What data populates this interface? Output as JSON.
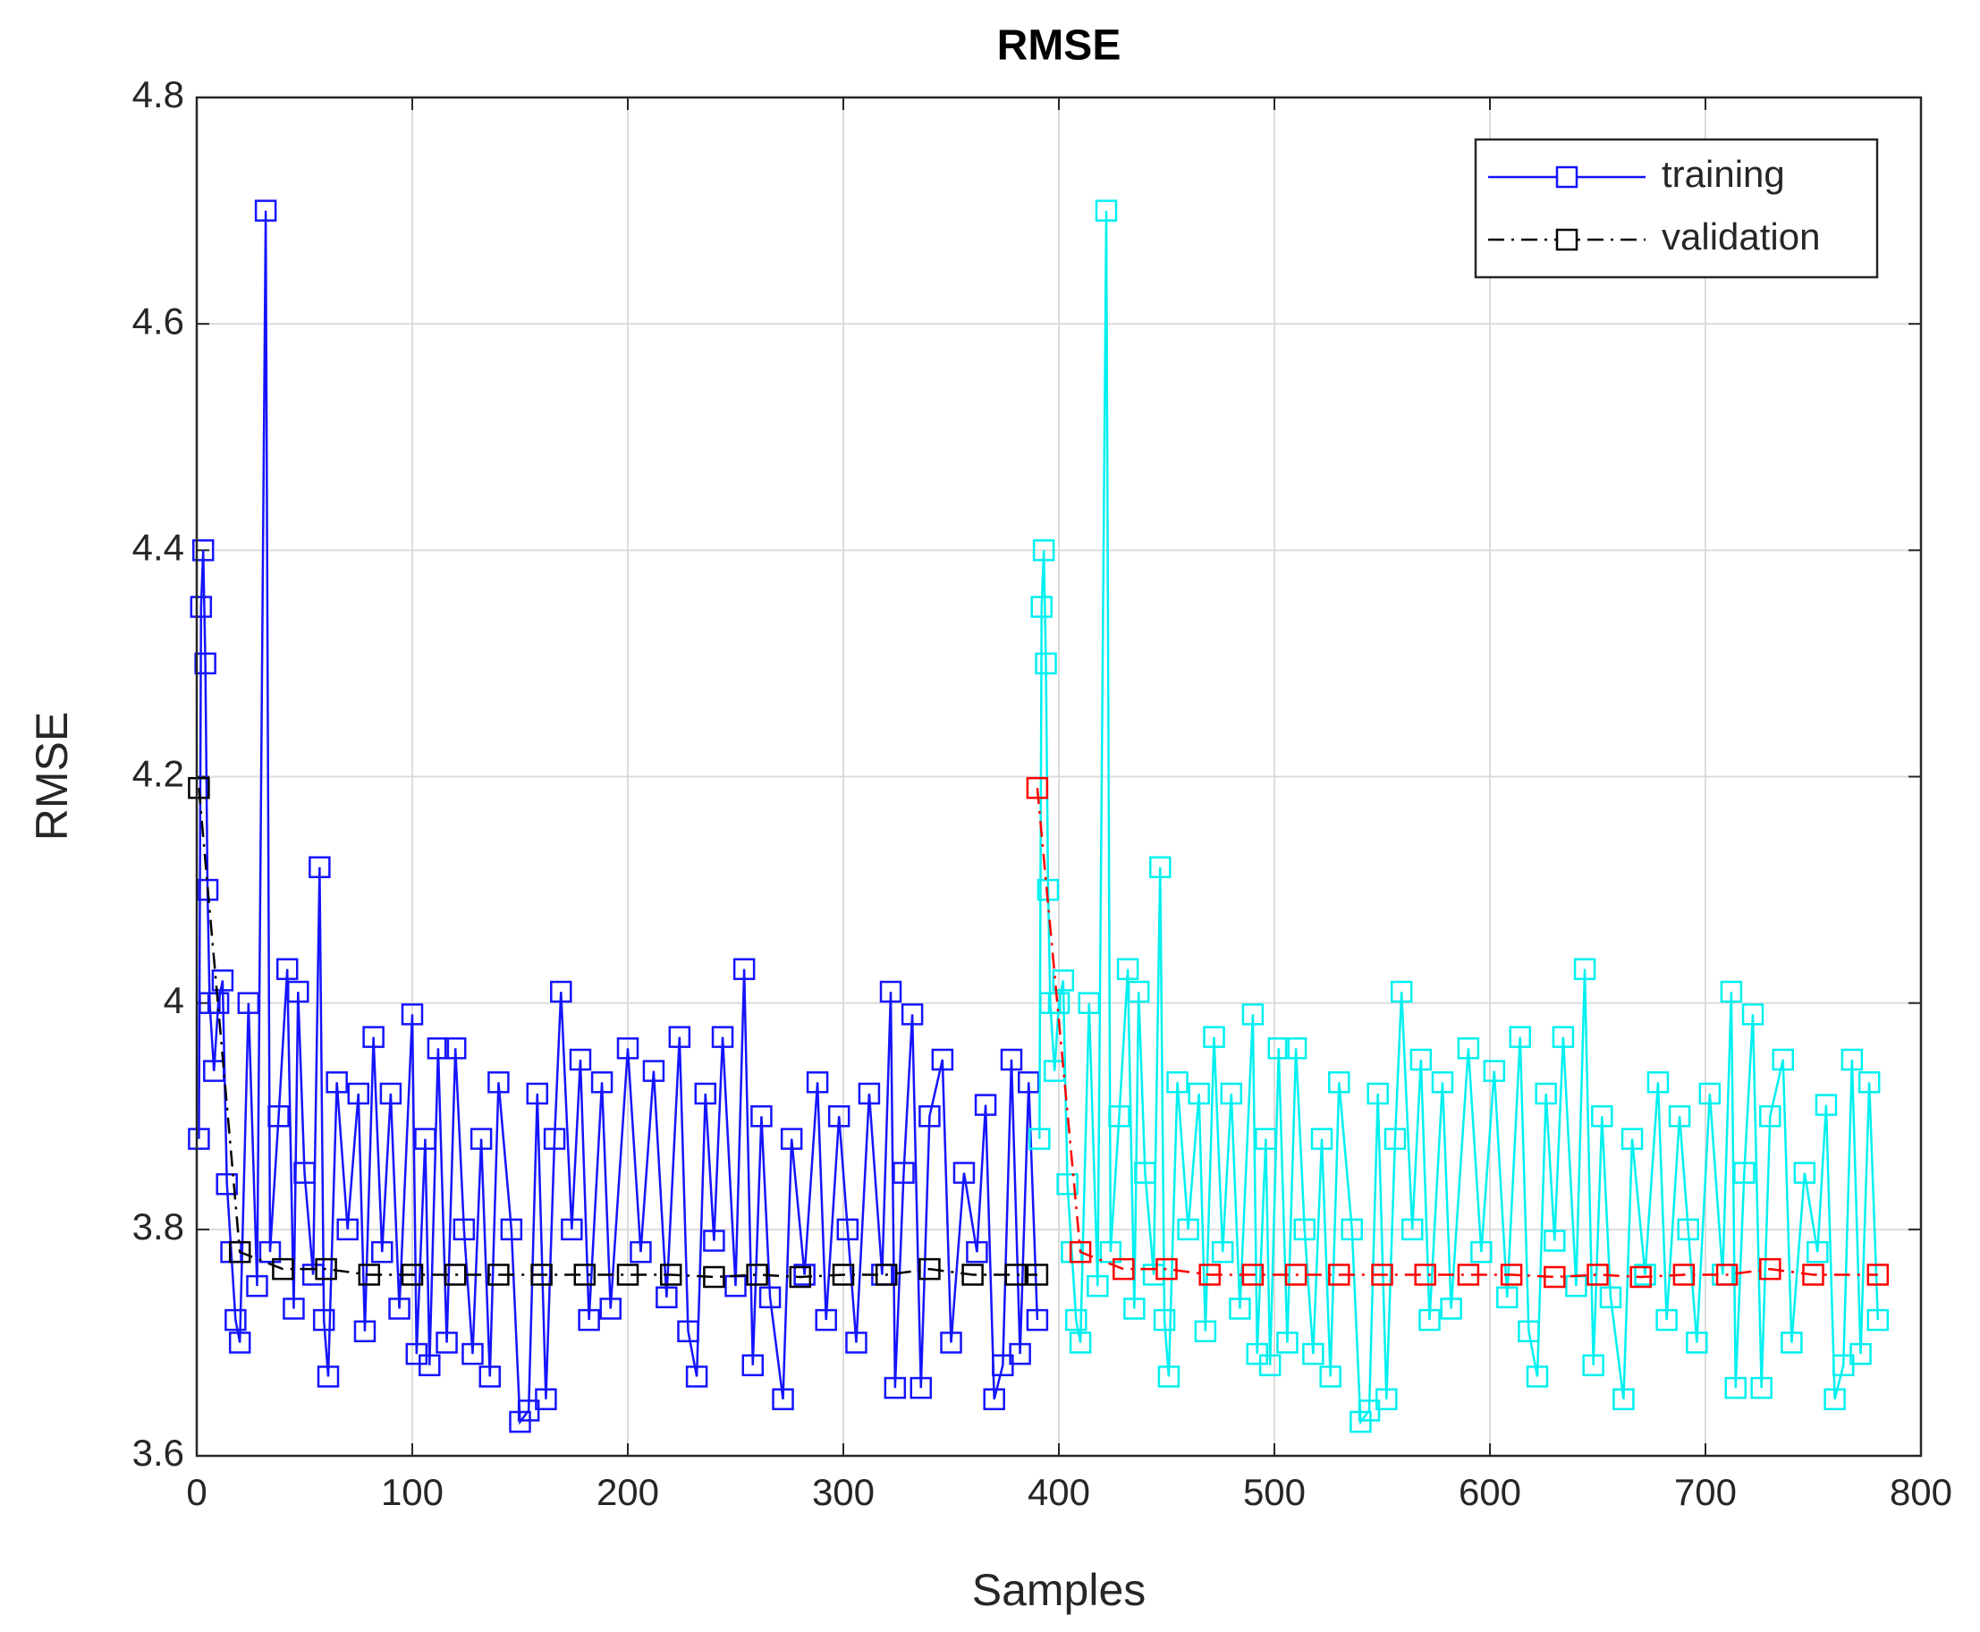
{
  "chart_data": {
    "type": "line",
    "title": "RMSE",
    "xlabel": "Samples",
    "ylabel": "RMSE",
    "xlim": [
      0,
      800
    ],
    "xticks": [
      0,
      100,
      200,
      300,
      400,
      500,
      600,
      700,
      800
    ],
    "ylim": [
      3.6,
      4.8
    ],
    "yticks": [
      3.6,
      3.8,
      4,
      4.2,
      4.4,
      4.6,
      4.8
    ],
    "grid": true,
    "legend_position": "upper right",
    "series": [
      {
        "name": "training",
        "color": "#1414ff",
        "linestyle": "solid",
        "marker": "square",
        "x": [
          1,
          2,
          3,
          4,
          5,
          6,
          8,
          10,
          12,
          14,
          16,
          18,
          20,
          24,
          28,
          32,
          34,
          38,
          42,
          45,
          47,
          50,
          54,
          57,
          59,
          61,
          65,
          70,
          75,
          78,
          82,
          86,
          90,
          94,
          100,
          102,
          106,
          108,
          112,
          116,
          120,
          124,
          128,
          132,
          136,
          140,
          146,
          150,
          154,
          158,
          162,
          166,
          169,
          174,
          178,
          182,
          188,
          192,
          200,
          206,
          212,
          218,
          224,
          228,
          232,
          236,
          240,
          244,
          250,
          254,
          258,
          262,
          266,
          272,
          276,
          282,
          288,
          292,
          298,
          302,
          306,
          312,
          318,
          322,
          324,
          328,
          332,
          336,
          340,
          346,
          350,
          356,
          362,
          366,
          370,
          374,
          378,
          382,
          386,
          390
        ],
        "values": [
          3.88,
          4.35,
          4.4,
          4.3,
          4.1,
          4.0,
          3.94,
          4.0,
          4.02,
          3.84,
          3.78,
          3.72,
          3.7,
          4.0,
          3.75,
          4.7,
          3.78,
          3.9,
          4.03,
          3.73,
          4.01,
          3.85,
          3.76,
          4.12,
          3.72,
          3.67,
          3.93,
          3.8,
          3.92,
          3.71,
          3.97,
          3.78,
          3.92,
          3.73,
          3.99,
          3.69,
          3.88,
          3.68,
          3.96,
          3.7,
          3.96,
          3.8,
          3.69,
          3.88,
          3.67,
          3.93,
          3.8,
          3.63,
          3.64,
          3.92,
          3.65,
          3.88,
          4.01,
          3.8,
          3.95,
          3.72,
          3.93,
          3.73,
          3.96,
          3.78,
          3.94,
          3.74,
          3.97,
          3.71,
          3.67,
          3.92,
          3.79,
          3.97,
          3.75,
          4.03,
          3.68,
          3.9,
          3.74,
          3.65,
          3.88,
          3.76,
          3.93,
          3.72,
          3.9,
          3.8,
          3.7,
          3.92,
          3.76,
          4.01,
          3.66,
          3.85,
          3.99,
          3.66,
          3.9,
          3.95,
          3.7,
          3.85,
          3.78,
          3.91,
          3.65,
          3.68,
          3.95,
          3.69,
          3.93,
          3.72
        ]
      },
      {
        "name": "validation",
        "color": "#000000",
        "linestyle": "dashdot",
        "marker": "square",
        "x": [
          1,
          20,
          40,
          60,
          80,
          100,
          120,
          140,
          160,
          180,
          200,
          220,
          240,
          260,
          280,
          300,
          320,
          340,
          360,
          380,
          390
        ],
        "values": [
          4.19,
          3.78,
          3.765,
          3.765,
          3.76,
          3.76,
          3.76,
          3.76,
          3.76,
          3.76,
          3.76,
          3.76,
          3.758,
          3.76,
          3.758,
          3.76,
          3.76,
          3.765,
          3.76,
          3.76,
          3.76
        ]
      },
      {
        "color": "#00f0f0",
        "linestyle": "solid",
        "marker": "square",
        "x": [
          391,
          392,
          393,
          394,
          395,
          396,
          398,
          400,
          402,
          404,
          406,
          408,
          410,
          414,
          418,
          422,
          424,
          428,
          432,
          435,
          437,
          440,
          444,
          447,
          449,
          451,
          455,
          460,
          465,
          468,
          472,
          476,
          480,
          484,
          490,
          492,
          496,
          498,
          502,
          506,
          510,
          514,
          518,
          522,
          526,
          530,
          536,
          540,
          544,
          548,
          552,
          556,
          559,
          564,
          568,
          572,
          578,
          582,
          590,
          596,
          602,
          608,
          614,
          618,
          622,
          626,
          630,
          634,
          640,
          644,
          648,
          652,
          656,
          662,
          666,
          672,
          678,
          682,
          688,
          692,
          696,
          702,
          708,
          712,
          714,
          718,
          722,
          726,
          730,
          736,
          740,
          746,
          752,
          756,
          760,
          764,
          768,
          772,
          776,
          780
        ],
        "values": [
          3.88,
          4.35,
          4.4,
          4.3,
          4.1,
          4.0,
          3.94,
          4.0,
          4.02,
          3.84,
          3.78,
          3.72,
          3.7,
          4.0,
          3.75,
          4.7,
          3.78,
          3.9,
          4.03,
          3.73,
          4.01,
          3.85,
          3.76,
          4.12,
          3.72,
          3.67,
          3.93,
          3.8,
          3.92,
          3.71,
          3.97,
          3.78,
          3.92,
          3.73,
          3.99,
          3.69,
          3.88,
          3.68,
          3.96,
          3.7,
          3.96,
          3.8,
          3.69,
          3.88,
          3.67,
          3.93,
          3.8,
          3.63,
          3.64,
          3.92,
          3.65,
          3.88,
          4.01,
          3.8,
          3.95,
          3.72,
          3.93,
          3.73,
          3.96,
          3.78,
          3.94,
          3.74,
          3.97,
          3.71,
          3.67,
          3.92,
          3.79,
          3.97,
          3.75,
          4.03,
          3.68,
          3.9,
          3.74,
          3.65,
          3.88,
          3.76,
          3.93,
          3.72,
          3.9,
          3.8,
          3.7,
          3.92,
          3.76,
          4.01,
          3.66,
          3.85,
          3.99,
          3.66,
          3.9,
          3.95,
          3.7,
          3.85,
          3.78,
          3.91,
          3.65,
          3.68,
          3.95,
          3.69,
          3.93,
          3.72
        ]
      },
      {
        "color": "#ff0000",
        "linestyle": "dashdot",
        "marker": "square",
        "x": [
          390,
          410,
          430,
          450,
          470,
          490,
          510,
          530,
          550,
          570,
          590,
          610,
          630,
          650,
          670,
          690,
          710,
          730,
          750,
          780
        ],
        "values": [
          4.19,
          3.78,
          3.765,
          3.765,
          3.76,
          3.76,
          3.76,
          3.76,
          3.76,
          3.76,
          3.76,
          3.76,
          3.758,
          3.76,
          3.758,
          3.76,
          3.76,
          3.765,
          3.76,
          3.76
        ]
      }
    ]
  }
}
